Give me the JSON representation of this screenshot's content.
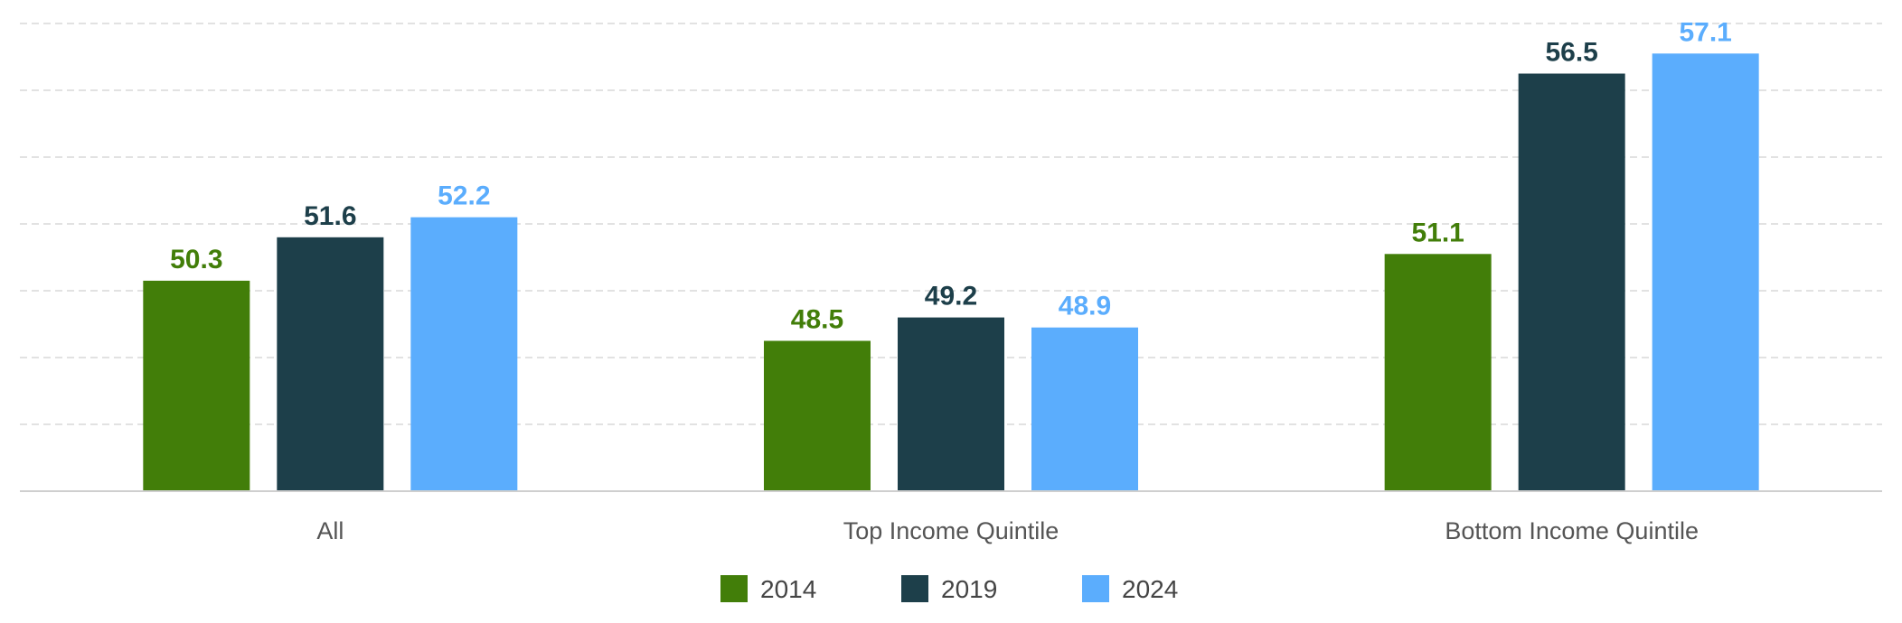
{
  "chart_data": {
    "type": "bar",
    "categories": [
      "All",
      "Top Income Quintile",
      "Bottom Income Quintile"
    ],
    "series": [
      {
        "name": "2014",
        "color": "#427e09",
        "values": [
          50.3,
          48.5,
          51.1
        ]
      },
      {
        "name": "2019",
        "color": "#1d3f4a",
        "values": [
          51.6,
          49.2,
          56.5
        ]
      },
      {
        "name": "2024",
        "color": "#5badfd",
        "values": [
          52.2,
          48.9,
          57.1
        ]
      }
    ],
    "title": "",
    "xlabel": "",
    "ylabel": "",
    "ylim": [
      44,
      58
    ],
    "grid": true,
    "legend_position": "bottom-center",
    "value_labels": true
  }
}
